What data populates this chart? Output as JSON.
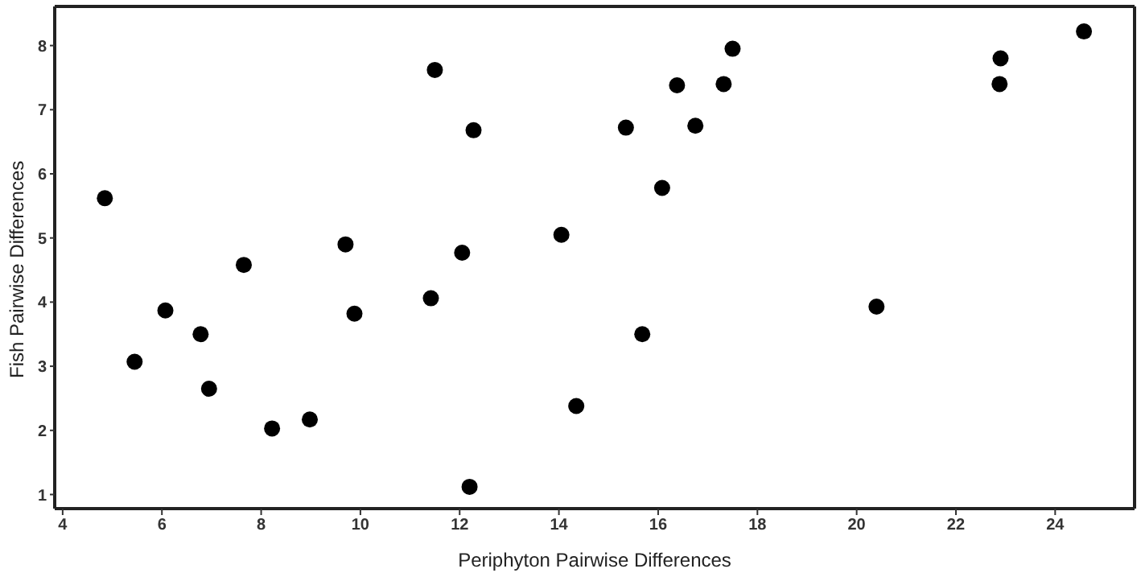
{
  "chart_data": {
    "type": "scatter",
    "xlabel": "Periphyton Pairwise Differences",
    "ylabel": "Fish Pairwise Differences",
    "x": [
      4.85,
      5.45,
      6.07,
      6.78,
      6.95,
      7.65,
      8.22,
      8.98,
      9.7,
      9.88,
      11.42,
      11.5,
      12.05,
      12.2,
      12.28,
      14.05,
      14.35,
      15.35,
      15.68,
      16.08,
      16.38,
      16.75,
      17.32,
      17.5,
      20.4,
      22.88,
      22.9,
      24.58
    ],
    "values": [
      5.62,
      3.07,
      3.87,
      3.5,
      2.65,
      4.58,
      2.03,
      2.17,
      4.9,
      3.82,
      4.06,
      7.62,
      4.77,
      1.12,
      6.68,
      5.05,
      2.38,
      6.72,
      3.5,
      5.78,
      7.38,
      6.75,
      7.4,
      7.95,
      3.93,
      7.4,
      7.8,
      8.22
    ],
    "color": "#000000",
    "marker": "circle",
    "xlim": [
      3.84,
      25.6
    ],
    "ylim": [
      0.78,
      8.61
    ],
    "xticks": [
      4,
      6,
      8,
      10,
      12,
      14,
      16,
      18,
      20,
      22,
      24
    ],
    "yticks": [
      1,
      2,
      3,
      4,
      5,
      6,
      7,
      8
    ],
    "grid": false,
    "legend": false
  }
}
